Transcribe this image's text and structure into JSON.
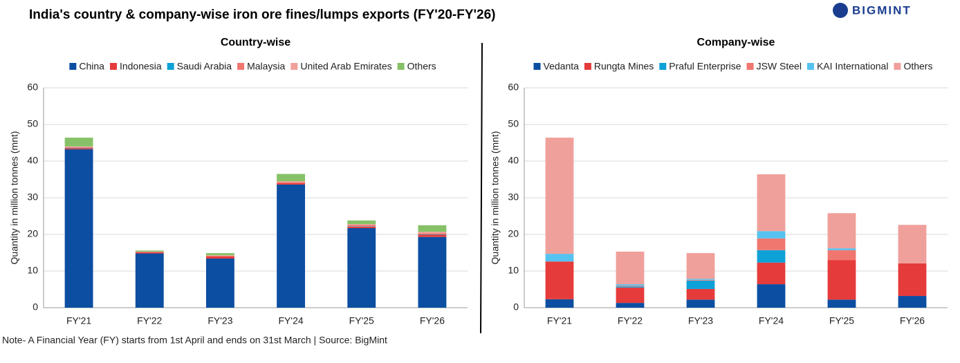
{
  "header": {
    "title": "India's country & company-wise  iron ore fines/lumps exports (FY'20-FY'26)",
    "logo": "BIGMINT"
  },
  "note": "Note- A Financial Year (FY) starts from 1st April and ends on 31st March | Source: BigMint",
  "chart_data": [
    {
      "type": "bar",
      "stacked": true,
      "title": "Country-wise",
      "y_label": "Quantity in million tonnes (mnt)",
      "categories": [
        "FY'21",
        "FY'22",
        "FY'23",
        "FY'24",
        "FY'25",
        "FY'26"
      ],
      "series": [
        {
          "name": "China",
          "color": "#0b4ea2",
          "values": [
            43.2,
            14.8,
            13.4,
            33.6,
            21.7,
            19.3
          ]
        },
        {
          "name": "Indonesia",
          "color": "#e63b3b",
          "values": [
            0.3,
            0.3,
            0.6,
            0.4,
            0.4,
            0.6
          ]
        },
        {
          "name": "Saudi Arabia",
          "color": "#0ea1d8",
          "values": [
            0.1,
            0,
            0,
            0,
            0.1,
            0.1
          ]
        },
        {
          "name": "Malaysia",
          "color": "#f0776f",
          "values": [
            0.2,
            0.1,
            0.2,
            0.3,
            0.4,
            0.3
          ]
        },
        {
          "name": "United Arab Emirates",
          "color": "#f0a09b",
          "values": [
            0.2,
            0.1,
            0.1,
            0.2,
            0.2,
            0.4
          ]
        },
        {
          "name": "Others",
          "color": "#86c167",
          "values": [
            2.4,
            0.3,
            0.6,
            2.0,
            1.0,
            1.8
          ]
        }
      ],
      "ylim": [
        0,
        60
      ],
      "yticks": [
        0,
        10,
        20,
        30,
        40,
        50,
        60
      ],
      "grid": true
    },
    {
      "type": "bar",
      "stacked": true,
      "title": "Company-wise",
      "y_label": "Quantity in million tonnes (mnt)",
      "categories": [
        "FY'21",
        "FY'22",
        "FY'23",
        "FY'24",
        "FY'25",
        "FY'26"
      ],
      "series": [
        {
          "name": "Vedanta",
          "color": "#0b4ea2",
          "values": [
            2.3,
            1.3,
            2.2,
            6.4,
            2.2,
            3.2
          ]
        },
        {
          "name": "Rungta Mines",
          "color": "#e63b3b",
          "values": [
            10.3,
            4.2,
            2.9,
            5.9,
            10.8,
            8.9
          ]
        },
        {
          "name": "Praful Enterprise",
          "color": "#0ea1d8",
          "values": [
            0,
            0.3,
            2.3,
            3.4,
            0,
            0
          ]
        },
        {
          "name": "JSW Steel",
          "color": "#f0776f",
          "values": [
            0,
            0.2,
            0.2,
            3.2,
            2.7,
            0
          ]
        },
        {
          "name": "KAI International",
          "color": "#56c2ef",
          "values": [
            2.1,
            0.4,
            0.3,
            2.0,
            0.5,
            0
          ]
        },
        {
          "name": "Others",
          "color": "#f0a09b",
          "values": [
            31.7,
            8.9,
            7.0,
            15.5,
            9.6,
            10.5
          ]
        }
      ],
      "ylim": [
        0,
        60
      ],
      "yticks": [
        0,
        10,
        20,
        30,
        40,
        50,
        60
      ],
      "grid": true
    }
  ]
}
